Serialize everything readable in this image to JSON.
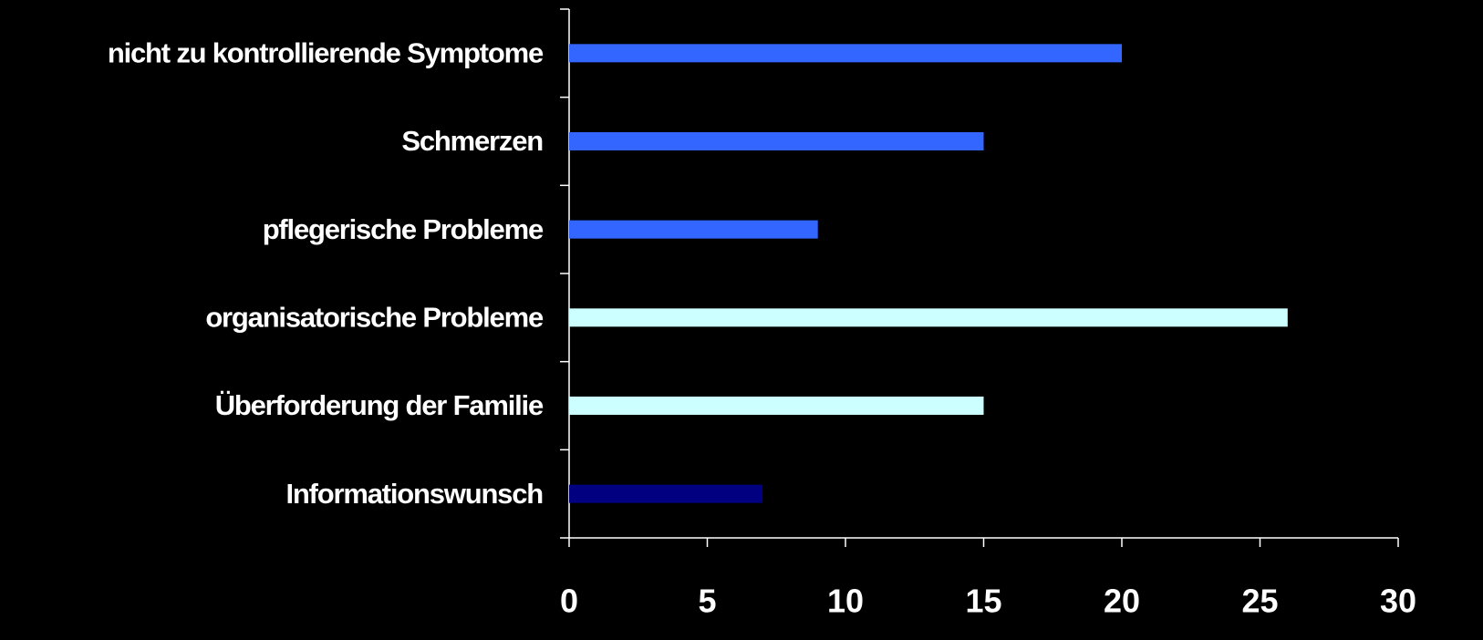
{
  "chart_data": {
    "type": "bar",
    "orientation": "horizontal",
    "categories": [
      "nicht zu kontrollierende Symptome",
      "Schmerzen",
      "pflegerische Probleme",
      "organisatorische Probleme",
      "Überforderung der Familie",
      "Informationswunsch"
    ],
    "values": [
      20,
      15,
      9,
      26,
      15,
      7
    ],
    "colors": [
      "#3366ff",
      "#3366ff",
      "#3366ff",
      "#ccffff",
      "#ccffff",
      "#000080"
    ],
    "xlim": [
      0,
      30
    ],
    "xticks": [
      0,
      5,
      10,
      15,
      20,
      25,
      30
    ],
    "grid": false
  }
}
